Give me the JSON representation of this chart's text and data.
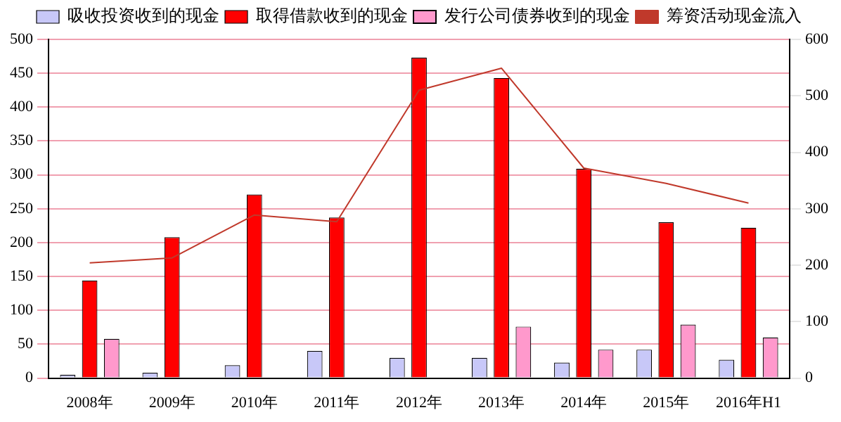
{
  "chart_data": {
    "type": "bar",
    "categories": [
      "2008年",
      "2009年",
      "2010年",
      "2011年",
      "2012年",
      "2013年",
      "2014年",
      "2015年",
      "2016年H1"
    ],
    "series": [
      {
        "name": "吸收投资收到的现金",
        "color": "#c8c8f8",
        "values": [
          5,
          8,
          19,
          40,
          30,
          30,
          23,
          42,
          27
        ]
      },
      {
        "name": "取得借款收到的现金",
        "color": "#ff0000",
        "values": [
          144,
          208,
          271,
          237,
          473,
          443,
          309,
          230,
          222
        ]
      },
      {
        "name": "发行公司债券收到的现金",
        "color": "#ff99cc",
        "values": [
          58,
          null,
          null,
          null,
          null,
          76,
          42,
          79,
          60
        ]
      },
      {
        "name": "筹资活动现金流入",
        "color": "#c0392b",
        "type": "line",
        "axis": "y2",
        "values": [
          204,
          213,
          289,
          277,
          510,
          549,
          372,
          345,
          310
        ]
      }
    ],
    "ylim": [
      0,
      500
    ],
    "yticks": [
      0,
      50,
      100,
      150,
      200,
      250,
      300,
      350,
      400,
      450,
      500
    ],
    "y2lim": [
      0,
      600
    ],
    "y2ticks": [
      0,
      100,
      200,
      300,
      400,
      500,
      600
    ],
    "grid": "y",
    "legend": "top",
    "marker": "none"
  }
}
